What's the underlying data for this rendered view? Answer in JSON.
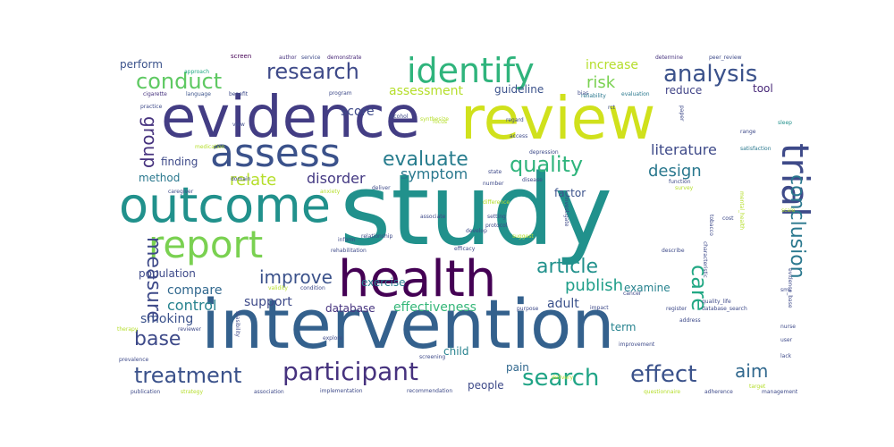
{
  "word_cloud": {
    "words": [
      {
        "text": "study",
        "color": "#21918c"
      },
      {
        "text": "intervention",
        "color": "#34618d"
      },
      {
        "text": "review",
        "color": "#d0e11c"
      },
      {
        "text": "evidence",
        "color": "#433d84"
      },
      {
        "text": "outcome",
        "color": "#21918c"
      },
      {
        "text": "health",
        "color": "#440154"
      },
      {
        "text": "assess",
        "color": "#3b528b"
      },
      {
        "text": "report",
        "color": "#7ad151"
      },
      {
        "text": "identify",
        "color": "#2fb47c"
      },
      {
        "text": "trial",
        "color": "#3e4a89"
      },
      {
        "text": "participant",
        "color": "#46327e"
      },
      {
        "text": "treatment",
        "color": "#3b528b"
      },
      {
        "text": "search",
        "color": "#20a486"
      },
      {
        "text": "effect",
        "color": "#3b528b"
      },
      {
        "text": "quality",
        "color": "#2fb47c"
      },
      {
        "text": "analysis",
        "color": "#3b528b"
      },
      {
        "text": "research",
        "color": "#3e4a89"
      },
      {
        "text": "conduct",
        "color": "#5ec962"
      },
      {
        "text": "evaluate",
        "color": "#287d8e"
      },
      {
        "text": "article",
        "color": "#21918c"
      },
      {
        "text": "conclusion",
        "color": "#2a788e"
      },
      {
        "text": "care",
        "color": "#22a884"
      },
      {
        "text": "improve",
        "color": "#3b528b"
      },
      {
        "text": "publish",
        "color": "#1f9e89"
      },
      {
        "text": "aim",
        "color": "#31688e"
      },
      {
        "text": "base",
        "color": "#3e4a89"
      },
      {
        "text": "measure",
        "color": "#3e4a89"
      },
      {
        "text": "group",
        "color": "#46327e"
      },
      {
        "text": "risk",
        "color": "#7ad151"
      },
      {
        "text": "design",
        "color": "#2a788e"
      },
      {
        "text": "literature",
        "color": "#3e4a89"
      },
      {
        "text": "relate",
        "color": "#b5de2b"
      },
      {
        "text": "disorder",
        "color": "#443983"
      },
      {
        "text": "symptom",
        "color": "#2a788e"
      },
      {
        "text": "compare",
        "color": "#31688e"
      },
      {
        "text": "control",
        "color": "#26828e"
      },
      {
        "text": "support",
        "color": "#3e4a89"
      },
      {
        "text": "smoking",
        "color": "#3b528b"
      },
      {
        "text": "effectiveness",
        "color": "#35b779"
      },
      {
        "text": "database",
        "color": "#46337f"
      },
      {
        "text": "adult",
        "color": "#3b528b"
      },
      {
        "text": "examine",
        "color": "#26828e"
      },
      {
        "text": "increase",
        "color": "#b5de2b"
      },
      {
        "text": "assessment",
        "color": "#b5de2b"
      },
      {
        "text": "guideline",
        "color": "#3b528b"
      },
      {
        "text": "reduce",
        "color": "#414487"
      },
      {
        "text": "tool",
        "color": "#482878"
      },
      {
        "text": "method",
        "color": "#2a788e"
      },
      {
        "text": "finding",
        "color": "#3e4a89"
      },
      {
        "text": "score",
        "color": "#3e4a89"
      },
      {
        "text": "factor",
        "color": "#3b528b"
      },
      {
        "text": "exercise",
        "color": "#287d8e"
      },
      {
        "text": "population",
        "color": "#3e4a89"
      },
      {
        "text": "perform",
        "color": "#3b528b"
      },
      {
        "text": "child",
        "color": "#26828e"
      },
      {
        "text": "term",
        "color": "#26828e"
      },
      {
        "text": "pain",
        "color": "#31688e"
      },
      {
        "text": "people",
        "color": "#3e4a89"
      },
      {
        "text": "screen",
        "color": "#440154"
      },
      {
        "text": "author",
        "color": "#46327e"
      },
      {
        "text": "service",
        "color": "#3e4a89"
      },
      {
        "text": "demonstrate",
        "color": "#482878"
      },
      {
        "text": "approach",
        "color": "#22a884"
      },
      {
        "text": "cigarette",
        "color": "#46327e"
      },
      {
        "text": "language",
        "color": "#3b528b"
      },
      {
        "text": "benefit",
        "color": "#3e4a89"
      },
      {
        "text": "program",
        "color": "#3e4a89"
      },
      {
        "text": "bias",
        "color": "#3e4a89"
      },
      {
        "text": "reliability",
        "color": "#2a788e"
      },
      {
        "text": "evaluation",
        "color": "#2a788e"
      },
      {
        "text": "determine",
        "color": "#46327e"
      },
      {
        "text": "peer_review",
        "color": "#3e4a89"
      },
      {
        "text": "practice",
        "color": "#3e4a89"
      },
      {
        "text": "alcohol",
        "color": "#3e4a89"
      },
      {
        "text": "synthesize",
        "color": "#b5de2b"
      },
      {
        "text": "regard",
        "color": "#3e4a89"
      },
      {
        "text": "access",
        "color": "#3e4a89"
      },
      {
        "text": "depression",
        "color": "#3e4a89"
      },
      {
        "text": "medication",
        "color": "#b5de2b"
      },
      {
        "text": "satisfaction",
        "color": "#2a788e"
      },
      {
        "text": "range",
        "color": "#3e4a89"
      },
      {
        "text": "sleep",
        "color": "#21918c"
      },
      {
        "text": "caregiver",
        "color": "#3e4a89"
      },
      {
        "text": "function",
        "color": "#3e4a89"
      },
      {
        "text": "survey",
        "color": "#b5de2b"
      },
      {
        "text": "deliver",
        "color": "#3e4a89"
      },
      {
        "text": "number",
        "color": "#3e4a89"
      },
      {
        "text": "disease",
        "color": "#3e4a89"
      },
      {
        "text": "investigate",
        "color": "#3e4a89"
      },
      {
        "text": "difference",
        "color": "#b5de2b"
      },
      {
        "text": "associate",
        "color": "#3e4a89"
      },
      {
        "text": "setting",
        "color": "#3e4a89"
      },
      {
        "text": "develop",
        "color": "#3e4a89"
      },
      {
        "text": "protocol",
        "color": "#3e4a89"
      },
      {
        "text": "inform",
        "color": "#3e4a89"
      },
      {
        "text": "relationship",
        "color": "#3e4a89"
      },
      {
        "text": "suggest",
        "color": "#b5de2b"
      },
      {
        "text": "rehabilitation",
        "color": "#3e4a89"
      },
      {
        "text": "efficacy",
        "color": "#3e4a89"
      },
      {
        "text": "describe",
        "color": "#3e4a89"
      },
      {
        "text": "validity",
        "color": "#b5de2b"
      },
      {
        "text": "condition",
        "color": "#3e4a89"
      },
      {
        "text": "cancer",
        "color": "#3e4a89"
      },
      {
        "text": "purpose",
        "color": "#3e4a89"
      },
      {
        "text": "impact",
        "color": "#3e4a89"
      },
      {
        "text": "register",
        "color": "#3e4a89"
      },
      {
        "text": "quality_life",
        "color": "#3e4a89"
      },
      {
        "text": "database_search",
        "color": "#3e4a89"
      },
      {
        "text": "therapy",
        "color": "#b5de2b"
      },
      {
        "text": "reviewer",
        "color": "#3e4a89"
      },
      {
        "text": "feasibility",
        "color": "#3e4a89"
      },
      {
        "text": "explore",
        "color": "#3e4a89"
      },
      {
        "text": "screening",
        "color": "#3e4a89"
      },
      {
        "text": "improvement",
        "color": "#3e4a89"
      },
      {
        "text": "prevalence",
        "color": "#3e4a89"
      },
      {
        "text": "publication",
        "color": "#3e4a89"
      },
      {
        "text": "strategy",
        "color": "#b5de2b"
      },
      {
        "text": "association",
        "color": "#3e4a89"
      },
      {
        "text": "implementation",
        "color": "#3e4a89"
      },
      {
        "text": "recommendation",
        "color": "#3e4a89"
      },
      {
        "text": "delivery",
        "color": "#b5de2b"
      },
      {
        "text": "questionnaire",
        "color": "#b5de2b"
      },
      {
        "text": "adherence",
        "color": "#3e4a89"
      },
      {
        "text": "target",
        "color": "#b5de2b"
      },
      {
        "text": "management",
        "color": "#3e4a89"
      },
      {
        "text": "user",
        "color": "#3e4a89"
      },
      {
        "text": "lack",
        "color": "#3e4a89"
      },
      {
        "text": "address",
        "color": "#3e4a89"
      },
      {
        "text": "characteristic",
        "color": "#3e4a89"
      },
      {
        "text": "tobacco",
        "color": "#3e4a89"
      },
      {
        "text": "evidence_base",
        "color": "#3e4a89"
      },
      {
        "text": "focus",
        "color": "#b5de2b"
      },
      {
        "text": "sms",
        "color": "#3e4a89"
      },
      {
        "text": "nurse",
        "color": "#3e4a89"
      },
      {
        "text": "scale",
        "color": "#b5de2b"
      },
      {
        "text": "cost",
        "color": "#3e4a89"
      },
      {
        "text": "paper",
        "color": "#3e4a89"
      },
      {
        "text": "rct",
        "color": "#3e4a89"
      },
      {
        "text": "view",
        "color": "#3e4a89"
      },
      {
        "text": "domain",
        "color": "#3e4a89"
      },
      {
        "text": "mental_health",
        "color": "#b5de2b"
      },
      {
        "text": "anxiety",
        "color": "#b5de2b"
      },
      {
        "text": "state",
        "color": "#3e4a89"
      }
    ]
  }
}
